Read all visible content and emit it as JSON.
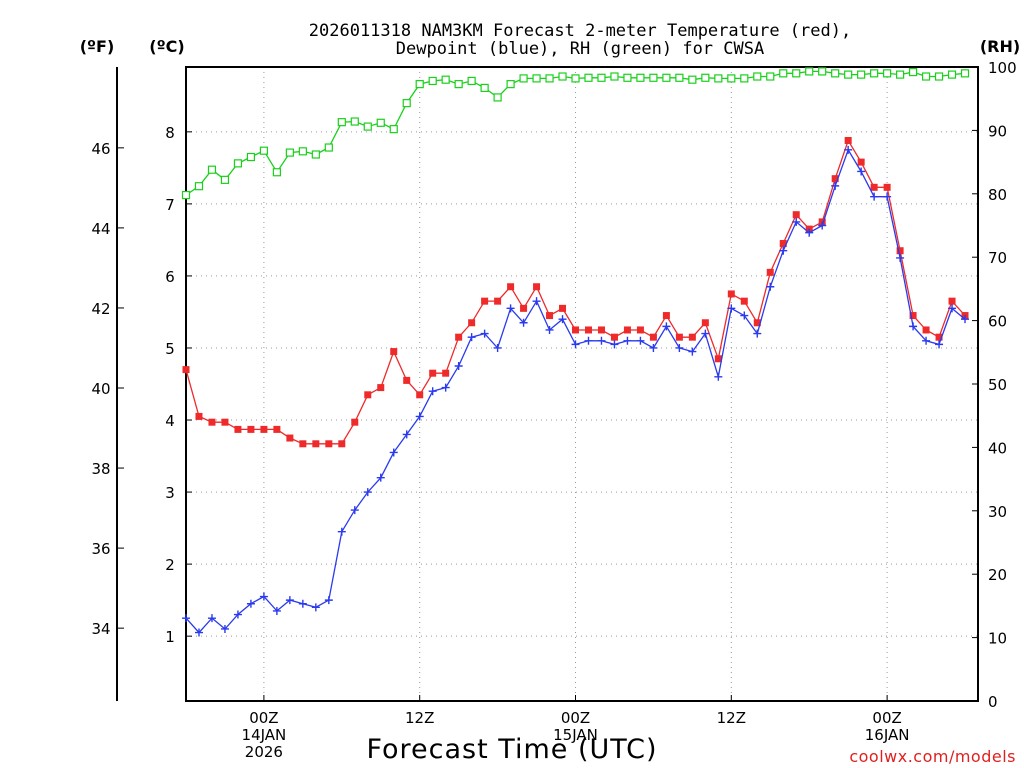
{
  "chart_data": {
    "type": "line",
    "title_line1": "2026011318 NAM3KM Forecast 2-meter Temperature (red),",
    "title_line2": "Dewpoint (blue), RH (green) for CWSA",
    "xlabel": "Forecast Time (UTC)",
    "credit": "coolwx.com/models",
    "units": {
      "fahrenheit": "(ºF)",
      "celsius": "(ºC)",
      "rh": "(RH)"
    },
    "x_range_hours": [
      0,
      61
    ],
    "c_range": [
      0.1,
      8.9
    ],
    "f_ticks": [
      34,
      36,
      38,
      40,
      42,
      44,
      46
    ],
    "c_ticks": [
      1,
      2,
      3,
      4,
      5,
      6,
      7,
      8
    ],
    "rh_range": [
      0,
      100
    ],
    "rh_ticks": [
      0,
      10,
      20,
      30,
      40,
      50,
      60,
      70,
      80,
      90,
      100
    ],
    "x_ticks": [
      {
        "hour": 6,
        "lines": [
          "00Z",
          "14JAN",
          "2026"
        ]
      },
      {
        "hour": 18,
        "lines": [
          "12Z"
        ]
      },
      {
        "hour": 30,
        "lines": [
          "00Z",
          "15JAN"
        ]
      },
      {
        "hour": 42,
        "lines": [
          "12Z"
        ]
      },
      {
        "hour": 54,
        "lines": [
          "00Z",
          "16JAN"
        ]
      }
    ],
    "colors": {
      "temperature": "#ee2a2a",
      "dewpoint": "#2a3aee",
      "rh": "#19d11b"
    },
    "series": [
      {
        "name": "Temperature (°C)",
        "marker": "filled-square",
        "values": [
          4.7,
          4.05,
          3.97,
          3.97,
          3.87,
          3.87,
          3.87,
          3.87,
          3.75,
          3.67,
          3.67,
          3.67,
          3.67,
          3.97,
          4.35,
          4.45,
          4.95,
          4.55,
          4.35,
          4.65,
          4.65,
          5.15,
          5.35,
          5.65,
          5.65,
          5.85,
          5.55,
          5.85,
          5.45,
          5.55,
          5.25,
          5.25,
          5.25,
          5.15,
          5.25,
          5.25,
          5.15,
          5.45,
          5.15,
          5.15,
          5.35,
          4.85,
          5.75,
          5.65,
          5.35,
          6.05,
          6.45,
          6.85,
          6.65,
          6.75,
          7.35,
          7.88,
          7.58,
          7.23,
          7.23,
          6.35,
          5.45,
          5.25,
          5.15,
          5.65,
          5.45
        ]
      },
      {
        "name": "Dewpoint (°C)",
        "marker": "plus",
        "values": [
          1.25,
          1.05,
          1.25,
          1.1,
          1.3,
          1.45,
          1.55,
          1.35,
          1.5,
          1.45,
          1.4,
          1.5,
          2.45,
          2.75,
          3.0,
          3.2,
          3.55,
          3.8,
          4.05,
          4.4,
          4.45,
          4.75,
          5.15,
          5.2,
          5.0,
          5.55,
          5.35,
          5.65,
          5.25,
          5.4,
          5.05,
          5.1,
          5.1,
          5.05,
          5.1,
          5.1,
          5.0,
          5.3,
          5.0,
          4.95,
          5.2,
          4.6,
          5.55,
          5.45,
          5.2,
          5.85,
          6.35,
          6.75,
          6.6,
          6.7,
          7.25,
          7.75,
          7.45,
          7.1,
          7.1,
          6.25,
          5.3,
          5.1,
          5.05,
          5.55,
          5.4
        ]
      },
      {
        "name": "RH (%)",
        "marker": "open-square",
        "values": [
          79.8,
          81.2,
          83.8,
          82.2,
          84.8,
          85.8,
          86.8,
          83.4,
          86.5,
          86.7,
          86.2,
          87.3,
          91.3,
          91.4,
          90.6,
          91.2,
          90.2,
          94.3,
          97.3,
          97.8,
          98.0,
          97.3,
          97.8,
          96.7,
          95.2,
          97.3,
          98.2,
          98.2,
          98.2,
          98.5,
          98.2,
          98.3,
          98.3,
          98.5,
          98.3,
          98.3,
          98.3,
          98.3,
          98.3,
          98.0,
          98.3,
          98.2,
          98.2,
          98.2,
          98.5,
          98.5,
          99.0,
          99.0,
          99.3,
          99.3,
          99.0,
          98.8,
          98.8,
          99.0,
          99.0,
          98.8,
          99.2,
          98.5,
          98.5,
          98.8,
          99.0
        ]
      }
    ]
  }
}
